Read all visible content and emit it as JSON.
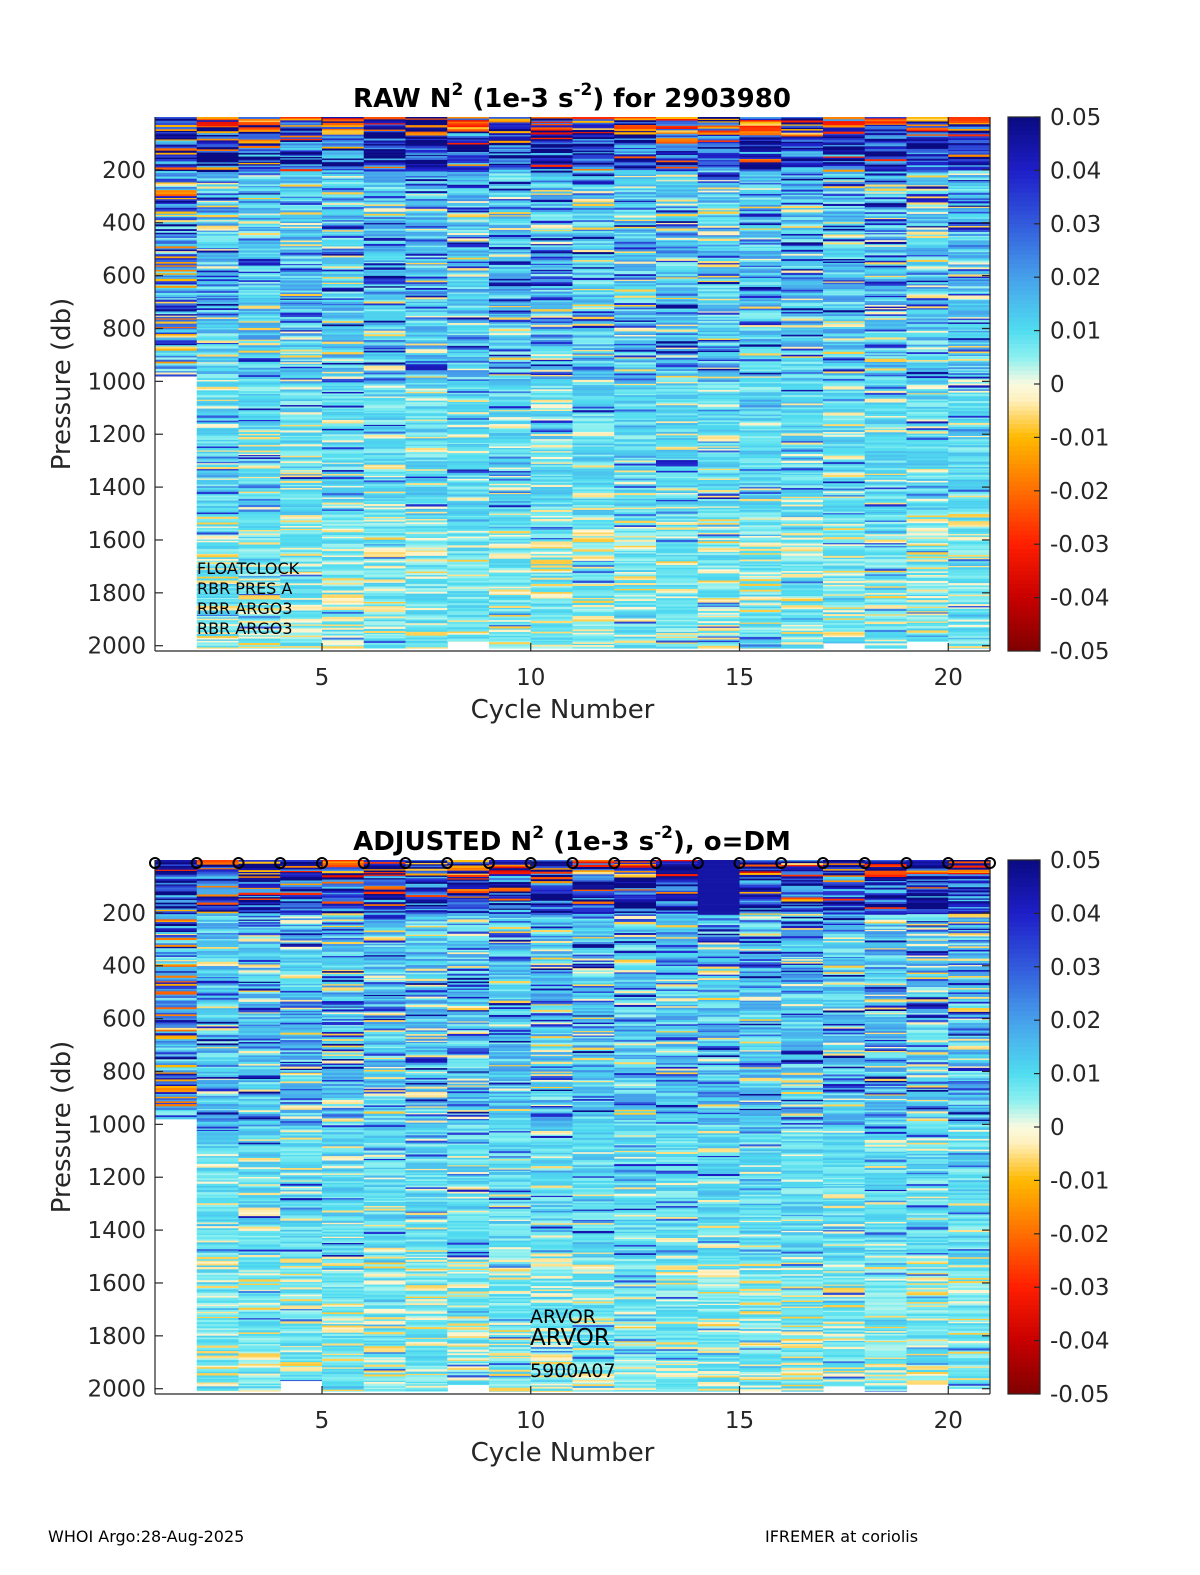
{
  "chart_data": [
    {
      "type": "heatmap",
      "title": {
        "prefix": "RAW N",
        "sup1": "2",
        "mid": " (1e-3 s",
        "sup2": "-2",
        "suffix": ") for 2903980"
      },
      "xlabel": "Cycle Number",
      "ylabel": "Pressure (db)",
      "xlim": [
        1,
        21
      ],
      "ylim": [
        0,
        2020
      ],
      "y_reversed": true,
      "xticks": [
        "5",
        "10",
        "15",
        "20"
      ],
      "yticks": [
        "200",
        "400",
        "600",
        "800",
        "1000",
        "1200",
        "1400",
        "1600",
        "1800",
        "2000"
      ],
      "colorbar": {
        "clim": [
          -0.05,
          0.05
        ],
        "ticks": [
          "0.05",
          "0.04",
          "0.03",
          "0.02",
          "0.01",
          "0",
          "-0.01",
          "-0.02",
          "-0.03",
          "-0.04",
          "-0.05"
        ]
      },
      "cycles": [
        1,
        2,
        3,
        4,
        5,
        6,
        7,
        8,
        9,
        10,
        11,
        12,
        13,
        14,
        15,
        16,
        17,
        18,
        19,
        20
      ],
      "max_pressure": [
        980,
        2010,
        2010,
        2010,
        2010,
        2010,
        2010,
        1985,
        2010,
        2010,
        2010,
        2010,
        2010,
        2010,
        2010,
        2010,
        1990,
        2010,
        1985,
        2010
      ],
      "annotations": [
        "FLOATCLOCK",
        "RBR PRES A",
        "RBR ARGO3",
        "RBR ARGO3"
      ]
    },
    {
      "type": "heatmap",
      "title": {
        "prefix": "ADJUSTED N",
        "sup1": "2",
        "mid": " (1e-3 s",
        "sup2": "-2",
        "suffix": "), o=DM"
      },
      "xlabel": "Cycle Number",
      "ylabel": "Pressure (db)",
      "xlim": [
        1,
        21
      ],
      "ylim": [
        0,
        2020
      ],
      "y_reversed": true,
      "xticks": [
        "5",
        "10",
        "15",
        "20"
      ],
      "yticks": [
        "200",
        "400",
        "600",
        "800",
        "1000",
        "1200",
        "1400",
        "1600",
        "1800",
        "2000"
      ],
      "colorbar": {
        "clim": [
          -0.05,
          0.05
        ],
        "ticks": [
          "0.05",
          "0.04",
          "0.03",
          "0.02",
          "0.01",
          "0",
          "-0.01",
          "-0.02",
          "-0.03",
          "-0.04",
          "-0.05"
        ]
      },
      "cycles": [
        1,
        2,
        3,
        4,
        5,
        6,
        7,
        8,
        9,
        10,
        11,
        12,
        13,
        14,
        15,
        16,
        17,
        18,
        19,
        20
      ],
      "max_pressure": [
        980,
        2010,
        2010,
        1970,
        2010,
        2010,
        2010,
        1985,
        2010,
        2010,
        2010,
        2010,
        2010,
        2010,
        2010,
        2010,
        1990,
        2010,
        1985,
        2000
      ],
      "dm_marker": "o",
      "dm_cycles": [
        1,
        2,
        3,
        4,
        5,
        6,
        7,
        8,
        9,
        10,
        11,
        12,
        13,
        14,
        15,
        16,
        17,
        18,
        19,
        20,
        21
      ],
      "annotations": [
        "ARVOR",
        "ARVOR",
        "5900A07"
      ]
    }
  ],
  "footer": {
    "left": "WHOI Argo:28-Aug-2025",
    "right": "IFREMER at coriolis"
  }
}
